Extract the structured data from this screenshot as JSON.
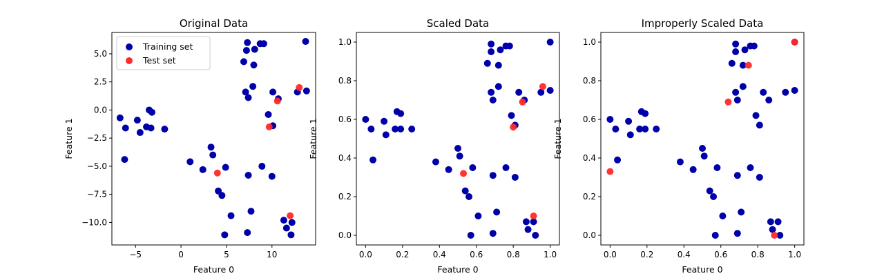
{
  "colors": {
    "train": "#0000aa",
    "test": "#ff2a2a"
  },
  "legend": {
    "train_label": "Training set",
    "test_label": "Test set"
  },
  "chart_data": [
    {
      "type": "scatter",
      "title": "Original Data",
      "xlabel": "Feature 0",
      "ylabel": "Feature 1",
      "xlim": [
        -7.6,
        14.8
      ],
      "ylim": [
        -12.0,
        6.9
      ],
      "xticks": [
        -5,
        0,
        5,
        10
      ],
      "xtick_labels": [
        "−5",
        "0",
        "5",
        "10"
      ],
      "yticks": [
        5.0,
        2.5,
        0.0,
        -2.5,
        -5.0,
        -7.5,
        -10.0
      ],
      "ytick_labels": [
        "5.0",
        "2.5",
        "0.0",
        "−2.5",
        "−5.0",
        "−7.5",
        "−10.0"
      ],
      "legend_position": "top-left",
      "series": [
        {
          "name": "Training set",
          "color": "#0000aa",
          "points": [
            [
              -6.7,
              -0.7
            ],
            [
              -6.1,
              -1.6
            ],
            [
              -6.2,
              -4.4
            ],
            [
              -4.8,
              -0.9
            ],
            [
              -4.5,
              -2.0
            ],
            [
              -3.8,
              -1.5
            ],
            [
              -3.5,
              0.0
            ],
            [
              -3.3,
              -1.6
            ],
            [
              -3.2,
              -0.2
            ],
            [
              -1.8,
              -1.7
            ],
            [
              1.0,
              -4.6
            ],
            [
              2.4,
              -5.3
            ],
            [
              3.3,
              -3.3
            ],
            [
              3.5,
              -4.0
            ],
            [
              4.1,
              -7.2
            ],
            [
              4.5,
              -7.6
            ],
            [
              4.9,
              -5.1
            ],
            [
              5.5,
              -9.4
            ],
            [
              4.8,
              -11.1
            ],
            [
              6.9,
              4.3
            ],
            [
              7.2,
              5.3
            ],
            [
              7.3,
              6.0
            ],
            [
              8.0,
              4.0
            ],
            [
              8.1,
              5.4
            ],
            [
              8.7,
              5.9
            ],
            [
              9.1,
              5.9
            ],
            [
              7.1,
              1.6
            ],
            [
              7.4,
              1.1
            ],
            [
              7.9,
              2.1
            ],
            [
              10.1,
              1.6
            ],
            [
              10.7,
              1.0
            ],
            [
              9.6,
              -0.4
            ],
            [
              10.1,
              -1.4
            ],
            [
              8.9,
              -5.0
            ],
            [
              7.4,
              -5.8
            ],
            [
              10.0,
              -5.9
            ],
            [
              7.7,
              -9.0
            ],
            [
              7.3,
              -10.9
            ],
            [
              11.3,
              -9.8
            ],
            [
              11.6,
              -10.5
            ],
            [
              12.2,
              -10.0
            ],
            [
              12.1,
              -11.1
            ],
            [
              12.8,
              1.6
            ],
            [
              13.8,
              1.7
            ],
            [
              13.7,
              6.1
            ]
          ]
        },
        {
          "name": "Test set",
          "color": "#ff2a2a",
          "points": [
            [
              4.0,
              -5.6
            ],
            [
              9.7,
              -1.5
            ],
            [
              10.6,
              0.8
            ],
            [
              13.0,
              2.0
            ],
            [
              12.0,
              -9.4
            ]
          ]
        }
      ]
    },
    {
      "type": "scatter",
      "title": "Scaled Data",
      "xlabel": "Feature 0",
      "ylabel": "Feature 1",
      "xlim": [
        -0.05,
        1.05
      ],
      "ylim": [
        -0.05,
        1.05
      ],
      "xticks": [
        0.0,
        0.2,
        0.4,
        0.6,
        0.8,
        1.0
      ],
      "xtick_labels": [
        "0.0",
        "0.2",
        "0.4",
        "0.6",
        "0.8",
        "1.0"
      ],
      "yticks": [
        1.0,
        0.8,
        0.6,
        0.4,
        0.2,
        0.0
      ],
      "ytick_labels": [
        "1.0",
        "0.8",
        "0.6",
        "0.4",
        "0.2",
        "0.0"
      ],
      "series": [
        {
          "name": "Training set",
          "color": "#0000aa",
          "points": [
            [
              0.0,
              0.6
            ],
            [
              0.03,
              0.55
            ],
            [
              0.04,
              0.39
            ],
            [
              0.1,
              0.59
            ],
            [
              0.11,
              0.52
            ],
            [
              0.16,
              0.55
            ],
            [
              0.17,
              0.64
            ],
            [
              0.19,
              0.55
            ],
            [
              0.19,
              0.63
            ],
            [
              0.25,
              0.55
            ],
            [
              0.38,
              0.38
            ],
            [
              0.45,
              0.34
            ],
            [
              0.5,
              0.45
            ],
            [
              0.51,
              0.41
            ],
            [
              0.54,
              0.23
            ],
            [
              0.56,
              0.2
            ],
            [
              0.58,
              0.35
            ],
            [
              0.61,
              0.1
            ],
            [
              0.57,
              0.0
            ],
            [
              0.66,
              0.89
            ],
            [
              0.68,
              0.95
            ],
            [
              0.68,
              0.99
            ],
            [
              0.72,
              0.88
            ],
            [
              0.73,
              0.96
            ],
            [
              0.76,
              0.98
            ],
            [
              0.78,
              0.98
            ],
            [
              0.68,
              0.74
            ],
            [
              0.69,
              0.7
            ],
            [
              0.72,
              0.77
            ],
            [
              0.83,
              0.74
            ],
            [
              0.86,
              0.7
            ],
            [
              0.79,
              0.62
            ],
            [
              0.81,
              0.57
            ],
            [
              0.76,
              0.35
            ],
            [
              0.69,
              0.31
            ],
            [
              0.81,
              0.3
            ],
            [
              0.71,
              0.12
            ],
            [
              0.69,
              0.01
            ],
            [
              0.87,
              0.07
            ],
            [
              0.88,
              0.03
            ],
            [
              0.91,
              0.07
            ],
            [
              0.92,
              0.0
            ],
            [
              0.95,
              0.74
            ],
            [
              1.0,
              0.75
            ],
            [
              1.0,
              1.0
            ]
          ]
        },
        {
          "name": "Test set",
          "color": "#ff2a2a",
          "points": [
            [
              0.53,
              0.32
            ],
            [
              0.8,
              0.56
            ],
            [
              0.85,
              0.69
            ],
            [
              0.96,
              0.77
            ],
            [
              0.91,
              0.1
            ]
          ]
        }
      ]
    },
    {
      "type": "scatter",
      "title": "Improperly Scaled Data",
      "xlabel": "Feature 0",
      "ylabel": "Feature 1",
      "xlim": [
        -0.05,
        1.05
      ],
      "ylim": [
        -0.05,
        1.05
      ],
      "xticks": [
        0.0,
        0.2,
        0.4,
        0.6,
        0.8,
        1.0
      ],
      "xtick_labels": [
        "0.0",
        "0.2",
        "0.4",
        "0.6",
        "0.8",
        "1.0"
      ],
      "yticks": [
        1.0,
        0.8,
        0.6,
        0.4,
        0.2,
        0.0
      ],
      "ytick_labels": [
        "1.0",
        "0.8",
        "0.6",
        "0.4",
        "0.2",
        "0.0"
      ],
      "series": [
        {
          "name": "Training set",
          "color": "#0000aa",
          "points": [
            [
              0.0,
              0.6
            ],
            [
              0.03,
              0.55
            ],
            [
              0.04,
              0.39
            ],
            [
              0.1,
              0.59
            ],
            [
              0.11,
              0.52
            ],
            [
              0.16,
              0.55
            ],
            [
              0.17,
              0.64
            ],
            [
              0.19,
              0.55
            ],
            [
              0.19,
              0.63
            ],
            [
              0.25,
              0.55
            ],
            [
              0.38,
              0.38
            ],
            [
              0.45,
              0.34
            ],
            [
              0.5,
              0.45
            ],
            [
              0.51,
              0.41
            ],
            [
              0.54,
              0.23
            ],
            [
              0.56,
              0.2
            ],
            [
              0.58,
              0.35
            ],
            [
              0.61,
              0.1
            ],
            [
              0.57,
              0.0
            ],
            [
              0.66,
              0.89
            ],
            [
              0.68,
              0.95
            ],
            [
              0.68,
              0.99
            ],
            [
              0.72,
              0.88
            ],
            [
              0.73,
              0.96
            ],
            [
              0.76,
              0.98
            ],
            [
              0.78,
              0.98
            ],
            [
              0.68,
              0.74
            ],
            [
              0.69,
              0.7
            ],
            [
              0.72,
              0.77
            ],
            [
              0.83,
              0.74
            ],
            [
              0.86,
              0.7
            ],
            [
              0.79,
              0.62
            ],
            [
              0.81,
              0.57
            ],
            [
              0.76,
              0.35
            ],
            [
              0.69,
              0.31
            ],
            [
              0.81,
              0.3
            ],
            [
              0.71,
              0.12
            ],
            [
              0.69,
              0.01
            ],
            [
              0.87,
              0.07
            ],
            [
              0.88,
              0.03
            ],
            [
              0.91,
              0.07
            ],
            [
              0.92,
              0.0
            ],
            [
              0.95,
              0.74
            ],
            [
              1.0,
              0.75
            ],
            [
              1.0,
              1.0
            ]
          ]
        },
        {
          "name": "Test set",
          "color": "#ff2a2a",
          "points": [
            [
              0.0,
              0.33
            ],
            [
              0.64,
              0.69
            ],
            [
              0.75,
              0.88
            ],
            [
              1.0,
              1.0
            ],
            [
              0.89,
              0.0
            ]
          ]
        }
      ]
    }
  ]
}
